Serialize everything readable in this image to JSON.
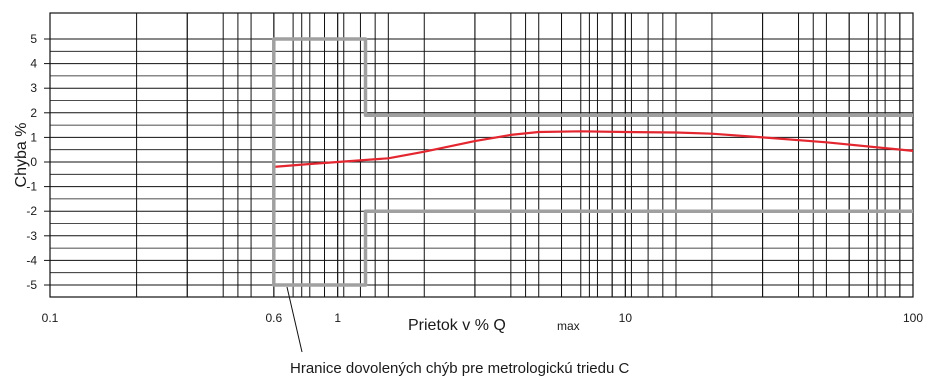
{
  "chart_data": {
    "type": "line",
    "xscale": "log",
    "xlim": [
      0.1,
      100
    ],
    "ylim": [
      -5.5,
      5.5
    ],
    "grid": true,
    "xlabel": "Prietok v  %  Q",
    "xlabel_sub": "max",
    "ylabel": "Chyba %",
    "x_ticks": [
      {
        "value": 0.1,
        "label": "0.1"
      },
      {
        "value": 0.6,
        "label": "0.6"
      },
      {
        "value": 1,
        "label": "1"
      },
      {
        "value": 10,
        "label": "10"
      },
      {
        "value": 100,
        "label": "100"
      }
    ],
    "y_ticks": [
      {
        "value": 5,
        "label": "5"
      },
      {
        "value": 4,
        "label": "4"
      },
      {
        "value": 3,
        "label": "3"
      },
      {
        "value": 2,
        "label": "2"
      },
      {
        "value": 1,
        "label": "1"
      },
      {
        "value": 0,
        "label": "0"
      },
      {
        "value": -1,
        "label": "-1"
      },
      {
        "value": -2,
        "label": "-2"
      },
      {
        "value": -3,
        "label": "-3"
      },
      {
        "value": -4,
        "label": "-4"
      },
      {
        "value": -5,
        "label": "-5"
      }
    ],
    "annotation": "Hranice dovolených chýb pre metrologickú triedu C",
    "series": [
      {
        "color": "#e3262f",
        "x": [
          0.6,
          0.8,
          1.0,
          1.5,
          2.0,
          3.0,
          4.0,
          5.0,
          7.0,
          10,
          15,
          20,
          30,
          50,
          100
        ],
        "y": [
          -0.2,
          -0.08,
          0.0,
          0.15,
          0.42,
          0.85,
          1.1,
          1.22,
          1.25,
          1.22,
          1.2,
          1.15,
          1.0,
          0.8,
          0.45
        ]
      },
      {
        "color": "#a0a0a0",
        "x": [
          100,
          1.25,
          1.25,
          0.6,
          0.6,
          1.25,
          1.25,
          100
        ],
        "y": [
          1.9,
          1.9,
          5.0,
          5.0,
          -5.0,
          -5.0,
          -2.0,
          -2.0
        ]
      }
    ]
  }
}
